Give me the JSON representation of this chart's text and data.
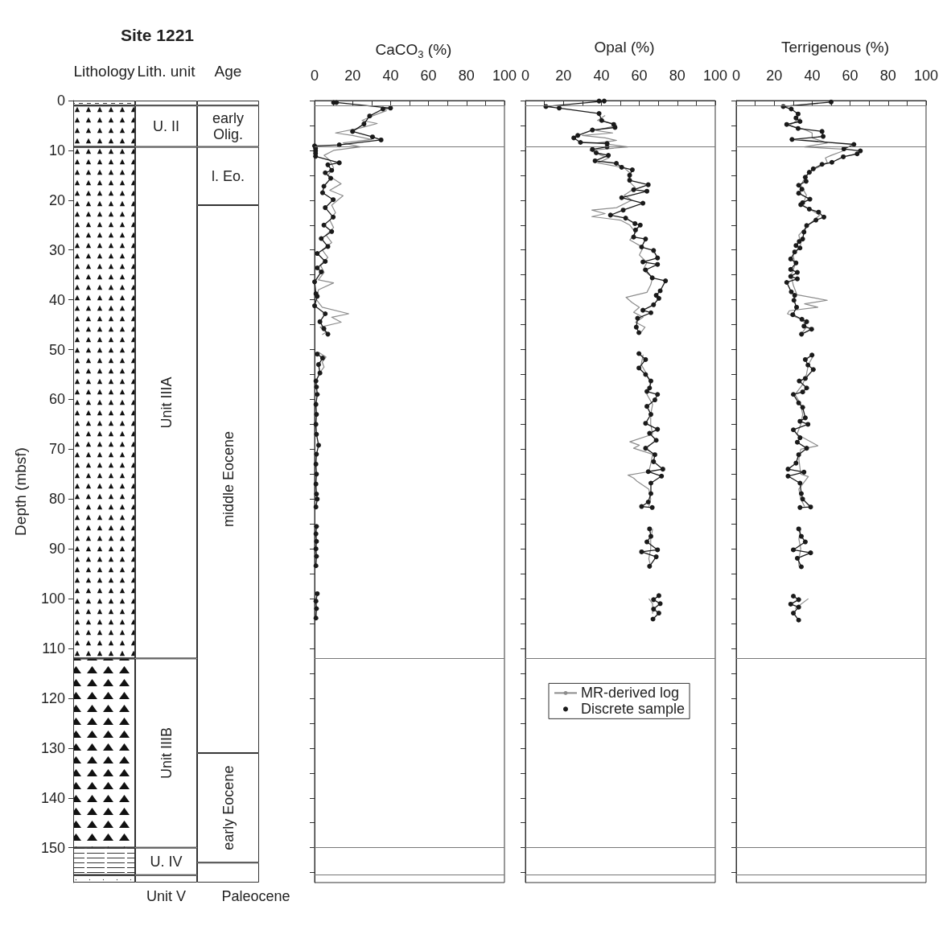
{
  "chart_data": [
    {
      "type": "bar",
      "stacked": true,
      "title": "Site 1221",
      "categories": [
        "Lithology",
        "Lith. unit",
        "Age"
      ],
      "ylabel": "Depth (mbsf)",
      "ylim": [
        157,
        0
      ],
      "yticks": [
        0,
        10,
        20,
        30,
        40,
        50,
        60,
        70,
        80,
        90,
        100,
        110,
        120,
        130,
        140,
        150
      ],
      "series": [
        {
          "color": "#ffffff",
          "values": [
            1,
            1,
            1
          ]
        },
        {
          "color": "#ffffff",
          "values": [
            8.3,
            8.3,
            8.3
          ],
          "value_labels": [
            null,
            "U. II",
            "early Olig."
          ]
        },
        {
          "color": "#ffffff",
          "values": [
            102.7,
            102.7,
            11.7
          ],
          "value_labels": [
            null,
            "Unit IIIA",
            "l. Eo."
          ]
        },
        {
          "color": "#ffffff",
          "values": [
            38,
            38,
            110
          ],
          "value_labels": [
            null,
            "Unit IIIB",
            "middle Eocene"
          ]
        },
        {
          "color": "#ffffff",
          "values": [
            5.5,
            5.5,
            22
          ],
          "value_labels": [
            null,
            "U. IV",
            "early Eocene"
          ]
        },
        {
          "color": "#ffffff",
          "values": [
            1.5,
            1.5,
            4
          ],
          "value_labels": [
            null,
            "Unit V",
            "Paleocene"
          ]
        }
      ]
    },
    {
      "type": "line",
      "title": "CaCO$_{3}$ (%)",
      "xlim": [
        0,
        100
      ],
      "xticks": [
        0,
        {
          "value": 10,
          "label": null
        },
        20,
        {
          "value": 30,
          "label": null
        },
        40,
        {
          "value": 50,
          "label": null
        },
        60,
        {
          "value": 70,
          "label": null
        },
        80,
        {
          "value": 90,
          "label": null
        },
        100
      ],
      "ylim": [
        157,
        0
      ],
      "yticks": [
        0,
        5,
        10,
        15,
        20,
        25,
        30,
        35,
        40,
        45,
        50,
        55,
        60,
        65,
        70,
        75,
        80,
        85,
        90,
        95,
        100,
        105,
        110,
        115,
        120,
        125,
        130,
        135,
        140,
        145,
        150,
        155
      ],
      "tick_labels": "x",
      "legend": false,
      "ref_lines": [
        {
          "axis": "y",
          "value": 1
        },
        {
          "axis": "y",
          "value": 9.3
        },
        {
          "axis": "y",
          "value": 112
        },
        {
          "axis": "y",
          "value": 150
        },
        {
          "axis": "y",
          "value": 155.5
        }
      ],
      "series": [
        {
          "color": "#8c8c8c",
          "marker": "none",
          "x": [
            38,
            31,
            25,
            33,
            24,
            11,
            20,
            30,
            15,
            24,
            10,
            5,
            8,
            10,
            7,
            14,
            8,
            15,
            9,
            11,
            8,
            10,
            6,
            9,
            4,
            7,
            3,
            5,
            2,
            10,
            2,
            1,
            4,
            18,
            9,
            14,
            3,
            6,
            4,
            null,
            2,
            6,
            4,
            5,
            2
          ],
          "values": [
            2,
            3,
            4,
            4.6,
            5.5,
            6.5,
            7,
            7.8,
            8.5,
            9.3,
            10,
            11,
            12,
            13.5,
            15,
            16.7,
            18,
            19.1,
            21,
            22.5,
            24,
            25.5,
            27,
            28.5,
            30,
            31.5,
            33,
            34.5,
            36,
            36.6,
            38,
            40,
            41.5,
            42.8,
            43.5,
            44.5,
            45.5,
            46.5,
            47,
            null,
            50.5,
            51.5,
            52.5,
            53.5,
            55
          ]
        },
        {
          "color": "#1a1a1a",
          "marker": "circle",
          "x": [
            10,
            11.5,
            40,
            36,
            29,
            26,
            20,
            30.5,
            35,
            13,
            0,
            0.5,
            0.5,
            0.5,
            0.5,
            13,
            7,
            9,
            5.6,
            8.5,
            4.9,
            4.2,
            9.8,
            5.6,
            9.8,
            4.9,
            9,
            3.5,
            7,
            1.4,
            5.6,
            1.4,
            3.5,
            0,
            0.7,
            1.4,
            0,
            5.6,
            2.8,
            4.9,
            7,
            null,
            1.4,
            4.2,
            2.1,
            2.8,
            0.7,
            1,
            1.4,
            0.7,
            1,
            0.7,
            1,
            2.1,
            1,
            0.7,
            1,
            0.7,
            1,
            1.4,
            0.7,
            null,
            1,
            0.7,
            1,
            0.7,
            1,
            0.7,
            null,
            1.4,
            0.7,
            1,
            0.7
          ],
          "values": [
            0.4,
            0.4,
            1.5,
            1.7,
            3.1,
            4.7,
            6.2,
            7.3,
            7.9,
            8.9,
            9.1,
            9.6,
            10.1,
            10.6,
            11.2,
            12.5,
            12.9,
            14.0,
            14.5,
            15.6,
            17.2,
            18.5,
            19.9,
            21.5,
            23.4,
            25.0,
            26.3,
            27.7,
            29.3,
            30.7,
            32.3,
            33.6,
            34.4,
            36.4,
            38.8,
            39.3,
            41.2,
            42.8,
            44.4,
            45.8,
            46.9,
            null,
            50.9,
            51.7,
            53.0,
            54.7,
            56.3,
            57.5,
            59,
            61,
            63,
            65,
            67,
            69.2,
            71,
            73,
            75,
            77,
            79,
            80,
            81.6,
            null,
            85.5,
            87,
            88.5,
            90,
            91.5,
            93.4,
            null,
            99,
            100.5,
            102,
            103.9
          ]
        }
      ]
    },
    {
      "type": "line",
      "title": "Opal (%)",
      "xlim": [
        0,
        100
      ],
      "xticks": [
        0,
        {
          "value": 10,
          "label": null
        },
        20,
        {
          "value": 30,
          "label": null
        },
        40,
        {
          "value": 50,
          "label": null
        },
        60,
        {
          "value": 70,
          "label": null
        },
        80,
        {
          "value": 90,
          "label": null
        },
        100
      ],
      "ylim": [
        157,
        0
      ],
      "yticks": [
        0,
        5,
        10,
        15,
        20,
        25,
        30,
        35,
        40,
        45,
        50,
        55,
        60,
        65,
        70,
        75,
        80,
        85,
        90,
        95,
        100,
        105,
        110,
        115,
        120,
        125,
        130,
        135,
        140,
        145,
        150,
        155
      ],
      "tick_labels": "x",
      "legend": "center",
      "ref_lines": [
        {
          "axis": "y",
          "value": 1
        },
        {
          "axis": "y",
          "value": 9.3
        },
        {
          "axis": "y",
          "value": 112
        },
        {
          "axis": "y",
          "value": 150
        },
        {
          "axis": "y",
          "value": 155.5
        }
      ],
      "series": [
        {
          "name": "MR-derived log",
          "color": "#8c8c8c",
          "marker": "none",
          "x": [
            42,
            38,
            45,
            48,
            37,
            46,
            30,
            42,
            48,
            38,
            54,
            34,
            40,
            44,
            38,
            52,
            55,
            54,
            58,
            52,
            56,
            48,
            35,
            42,
            35,
            50,
            55,
            58,
            55,
            62,
            60,
            64,
            62,
            67,
            66,
            64,
            53,
            56,
            60,
            57,
            62,
            58,
            63,
            61,
            null,
            62,
            61,
            64,
            66,
            64,
            67,
            66,
            66,
            67,
            55,
            60,
            57,
            67,
            66,
            65,
            54,
            57,
            59,
            65,
            66,
            65,
            null,
            67,
            66,
            66,
            65,
            66,
            null,
            65,
            67,
            67
          ],
          "values": [
            3,
            4,
            4.5,
            5,
            6,
            6.5,
            7,
            7.5,
            8,
            8.5,
            9.3,
            10,
            11,
            11.5,
            12.5,
            13.5,
            14.5,
            16,
            17.5,
            19,
            20,
            21.5,
            22,
            22.7,
            23.3,
            24,
            25,
            26.5,
            28,
            29.5,
            31,
            32.5,
            34,
            35.5,
            37,
            38.5,
            39.5,
            40.5,
            41.5,
            42.5,
            43.5,
            44.5,
            45.5,
            46.5,
            null,
            51,
            53,
            55,
            57,
            59,
            61,
            63,
            65,
            67,
            68.5,
            69.2,
            69.8,
            71,
            73,
            74.5,
            75.2,
            75.8,
            76.5,
            78,
            80,
            81.5,
            null,
            86,
            88,
            90,
            92,
            93.5,
            null,
            100,
            101,
            103
          ]
        },
        {
          "name": "Discrete sample",
          "color": "#1a1a1a",
          "marker": "circle",
          "x": [
            38.8,
            41.5,
            10.8,
            17.8,
            38.8,
            40.2,
            46.5,
            47.2,
            35.3,
            27.6,
            25.5,
            29,
            43,
            43,
            35.3,
            37.3,
            43.7,
            36.7,
            47.9,
            50.7,
            56.3,
            54.9,
            54.9,
            64.7,
            57,
            64,
            50.7,
            61.9,
            51.5,
            44.8,
            52.8,
            57.7,
            60.5,
            58,
            57,
            63.3,
            61.2,
            67.5,
            69.6,
            61.9,
            69.6,
            63.3,
            66.8,
            73.8,
            71,
            68.9,
            70.3,
            67.5,
            61.9,
            66.1,
            59.1,
            58.4,
            59.8,
            null,
            59.8,
            63.3,
            59.8,
            63.3,
            66.1,
            65.4,
            64,
            69.6,
            68.2,
            64,
            66.1,
            63.3,
            69.6,
            65.4,
            68.9,
            63.3,
            68.2,
            67.5,
            72.4,
            64.7,
            71.7,
            66.1,
            66.1,
            64.7,
            61.2,
            66.8,
            null,
            65.4,
            66.1,
            64,
            69.6,
            61.2,
            68.9,
            65.4,
            null,
            70.3,
            67.5,
            71,
            67.5,
            70.3,
            67.2
          ],
          "values": [
            0.1,
            0.1,
            1.2,
            1.5,
            2.6,
            4.0,
            4.8,
            5.4,
            5.9,
            7.0,
            7.5,
            8.4,
            8.6,
            9.3,
            9.8,
            10.5,
            11.0,
            12.1,
            12.6,
            13.4,
            13.9,
            15.0,
            16.0,
            16.9,
            17.9,
            18.2,
            19.5,
            20.6,
            22.0,
            23.0,
            23.6,
            24.7,
            25.0,
            26.0,
            27.4,
            27.8,
            29.4,
            30.1,
            31.6,
            32.4,
            32.9,
            34.0,
            35.6,
            36.2,
            38.2,
            39.1,
            39.7,
            41.0,
            42.1,
            42.6,
            43.7,
            45.5,
            46.6,
            null,
            50.8,
            52.0,
            53.7,
            55.0,
            56.3,
            57.7,
            58.4,
            59.0,
            60.1,
            61.4,
            63.0,
            64.8,
            66.0,
            66.8,
            68.2,
            69.8,
            71.1,
            72.5,
            74.0,
            74.5,
            75.4,
            76.8,
            78.9,
            80.6,
            81.5,
            81.7,
            null,
            86.0,
            87.5,
            88.6,
            90.2,
            90.6,
            91.6,
            93.5,
            null,
            99.4,
            100.2,
            101.0,
            102.1,
            102.9,
            104.1
          ]
        }
      ]
    },
    {
      "type": "line",
      "title": "Terrigenous (%)",
      "xlim": [
        0,
        100
      ],
      "xticks": [
        0,
        {
          "value": 10,
          "label": null
        },
        20,
        {
          "value": 30,
          "label": null
        },
        40,
        {
          "value": 50,
          "label": null
        },
        60,
        {
          "value": 70,
          "label": null
        },
        80,
        {
          "value": 90,
          "label": null
        },
        100
      ],
      "ylim": [
        157,
        0
      ],
      "yticks": [
        0,
        5,
        10,
        15,
        20,
        25,
        30,
        35,
        40,
        45,
        50,
        55,
        60,
        65,
        70,
        75,
        80,
        85,
        90,
        95,
        100,
        105,
        110,
        115,
        120,
        125,
        130,
        135,
        140,
        145,
        150,
        155
      ],
      "tick_labels": "x",
      "legend": false,
      "ref_lines": [
        {
          "axis": "y",
          "value": 1
        },
        {
          "axis": "y",
          "value": 9.3
        },
        {
          "axis": "y",
          "value": 112
        },
        {
          "axis": "y",
          "value": 150
        },
        {
          "axis": "y",
          "value": 155.5
        }
      ],
      "series": [
        {
          "color": "#8c8c8c",
          "marker": "none",
          "x": [
            34,
            28,
            36,
            40,
            40,
            48,
            36,
            58,
            55,
            50,
            47,
            48,
            40,
            37,
            34,
            37,
            35,
            44,
            38,
            33,
            34,
            30,
            31,
            29,
            30,
            32,
            48,
            36,
            43,
            28,
            27,
            35,
            37,
            34,
            null,
            41,
            38,
            37,
            35,
            31,
            34,
            35,
            34,
            32,
            43,
            34,
            33,
            34,
            38,
            33,
            34,
            36,
            null,
            34,
            33,
            34,
            33,
            33,
            null,
            38,
            31
          ],
          "values": [
            3.5,
            5,
            5.8,
            6.5,
            7.5,
            8.5,
            9.3,
            9.8,
            10.3,
            11,
            11.5,
            12.5,
            14,
            15,
            17,
            19,
            21,
            23,
            25,
            27,
            29,
            31,
            33,
            35,
            37,
            39,
            40.1,
            40.8,
            41.5,
            42.2,
            42.8,
            44,
            45.5,
            47,
            null,
            51,
            53,
            55,
            57,
            59,
            61,
            63,
            65,
            67,
            69.3,
            70,
            72,
            75,
            75.5,
            78,
            80,
            81.5,
            null,
            86,
            88,
            90,
            92,
            93.5,
            null,
            100,
            102
          ]
        },
        {
          "color": "#1a1a1a",
          "marker": "circle",
          "x": [
            50,
            24.8,
            29,
            32.6,
            31.5,
            33.6,
            26.6,
            32.6,
            45.2,
            45.8,
            29.4,
            62,
            56.7,
            65.4,
            63.7,
            56.4,
            50.4,
            45.2,
            40.6,
            38.5,
            36.4,
            36.8,
            32.9,
            34.6,
            32.9,
            38.8,
            35,
            34,
            38.5,
            43.4,
            46.2,
            42,
            37.1,
            35.7,
            35,
            33.2,
            31.5,
            33.6,
            30.8,
            28.7,
            31.5,
            28.7,
            32.2,
            28.7,
            32.2,
            26.6,
            29,
            30.8,
            30.4,
            31.8,
            29.8,
            34.6,
            37.1,
            35.7,
            39.7,
            34.4,
            null,
            39.9,
            36.4,
            37.8,
            40.6,
            36.4,
            33.2,
            37.1,
            35,
            30.1,
            32.9,
            35,
            36.4,
            33.6,
            37.8,
            30.1,
            33.6,
            32.2,
            37.1,
            32.9,
            31.5,
            27.3,
            35.7,
            27.3,
            33.6,
            34.3,
            35,
            39.2,
            33.6,
            null,
            32.9,
            34.3,
            36.4,
            30.1,
            39.2,
            32.2,
            34.3,
            null,
            30.1,
            32.9,
            28.7,
            32.9,
            30.1,
            32.9
          ],
          "values": [
            0.3,
            1.2,
            1.7,
            2.7,
            3.5,
            4.2,
            4.8,
            5.6,
            6.2,
            7.2,
            7.8,
            8.8,
            9.7,
            10.1,
            10.7,
            11.3,
            12.4,
            12.8,
            13.7,
            14.4,
            15.4,
            16.2,
            17.0,
            17.8,
            18.6,
            19.8,
            20.5,
            20.9,
            21.8,
            22.4,
            23.4,
            24.0,
            25.1,
            26.4,
            27.8,
            28.3,
            29.1,
            29.6,
            30.4,
            31.8,
            32.6,
            33.9,
            34.5,
            35.3,
            35.8,
            36.5,
            38.4,
            39.1,
            40.1,
            41.5,
            43.0,
            43.9,
            44.4,
            45.3,
            45.9,
            46.9,
            null,
            51.1,
            52.0,
            53.1,
            54.0,
            55.8,
            56.3,
            57.7,
            58.5,
            59.0,
            60.7,
            61.6,
            63.7,
            64.4,
            65.0,
            66.1,
            67.7,
            68.6,
            69.8,
            71.1,
            72.8,
            74.0,
            74.6,
            75.4,
            76.8,
            78.9,
            80.0,
            81.6,
            81.7,
            null,
            86.0,
            87.5,
            88.6,
            90.2,
            90.8,
            91.9,
            93.6,
            null,
            99.5,
            100.2,
            101.1,
            101.7,
            102.9,
            104.3
          ]
        }
      ]
    }
  ]
}
